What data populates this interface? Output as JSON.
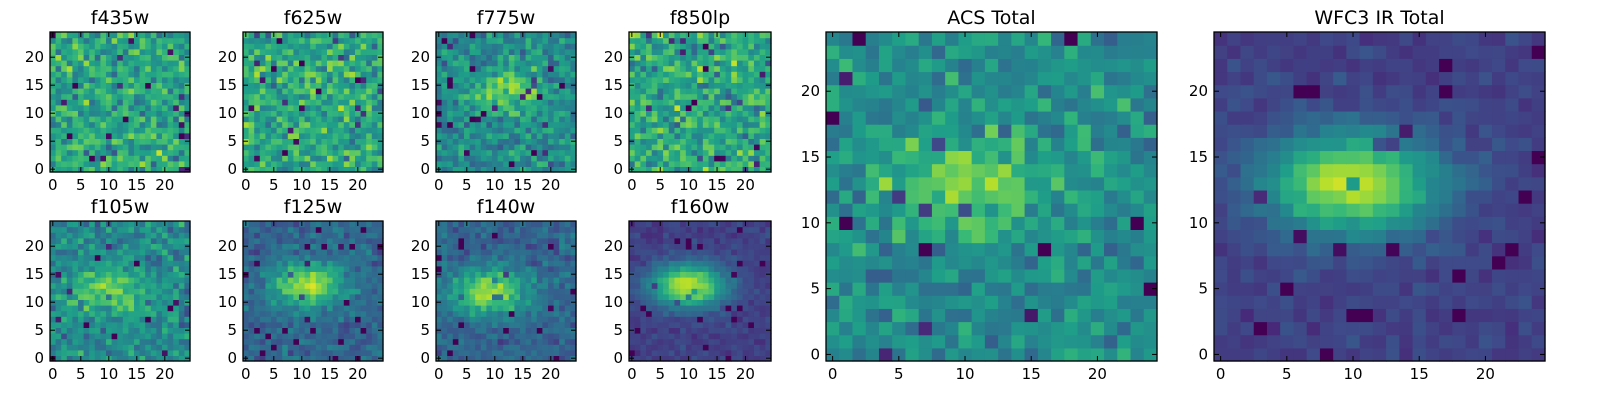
{
  "chart_data": [
    {
      "type": "heatmap",
      "title": "f435w",
      "grid_size": 25,
      "xlim": [
        -0.5,
        24.5
      ],
      "ylim": [
        -0.5,
        24.5
      ],
      "xticks": [
        0,
        5,
        10,
        15,
        20
      ],
      "yticks": [
        0,
        5,
        10,
        15,
        20
      ],
      "colormap": "viridis",
      "pattern": "noise",
      "peak": [
        12,
        12
      ]
    },
    {
      "type": "heatmap",
      "title": "f625w",
      "grid_size": 25,
      "xlim": [
        -0.5,
        24.5
      ],
      "ylim": [
        -0.5,
        24.5
      ],
      "xticks": [
        0,
        5,
        10,
        15,
        20
      ],
      "yticks": [
        0,
        5,
        10,
        15,
        20
      ],
      "colormap": "viridis",
      "pattern": "noise",
      "peak": [
        12,
        12
      ]
    },
    {
      "type": "heatmap",
      "title": "f775w",
      "grid_size": 25,
      "xlim": [
        -0.5,
        24.5
      ],
      "ylim": [
        -0.5,
        24.5
      ],
      "xticks": [
        0,
        5,
        10,
        15,
        20
      ],
      "yticks": [
        0,
        5,
        10,
        15,
        20
      ],
      "colormap": "viridis",
      "pattern": "noise-faint-source",
      "peak": [
        13,
        14
      ]
    },
    {
      "type": "heatmap",
      "title": "f850lp",
      "grid_size": 25,
      "xlim": [
        -0.5,
        24.5
      ],
      "ylim": [
        -0.5,
        24.5
      ],
      "xticks": [
        0,
        5,
        10,
        15,
        20
      ],
      "yticks": [
        0,
        5,
        10,
        15,
        20
      ],
      "colormap": "viridis",
      "pattern": "noise",
      "peak": [
        12,
        12
      ]
    },
    {
      "type": "heatmap",
      "title": "f105w",
      "grid_size": 25,
      "xlim": [
        -0.5,
        24.5
      ],
      "ylim": [
        -0.5,
        24.5
      ],
      "xticks": [
        0,
        5,
        10,
        15,
        20
      ],
      "yticks": [
        0,
        5,
        10,
        15,
        20
      ],
      "colormap": "viridis",
      "pattern": "noise-faint-source",
      "peak": [
        10,
        12
      ]
    },
    {
      "type": "heatmap",
      "title": "f125w",
      "grid_size": 25,
      "xlim": [
        -0.5,
        24.5
      ],
      "ylim": [
        -0.5,
        24.5
      ],
      "xticks": [
        0,
        5,
        10,
        15,
        20
      ],
      "yticks": [
        0,
        5,
        10,
        15,
        20
      ],
      "colormap": "viridis",
      "pattern": "source",
      "peak": [
        11,
        13
      ]
    },
    {
      "type": "heatmap",
      "title": "f140w",
      "grid_size": 25,
      "xlim": [
        -0.5,
        24.5
      ],
      "ylim": [
        -0.5,
        24.5
      ],
      "xticks": [
        0,
        5,
        10,
        15,
        20
      ],
      "yticks": [
        0,
        5,
        10,
        15,
        20
      ],
      "colormap": "viridis",
      "pattern": "source",
      "peak": [
        9,
        12
      ]
    },
    {
      "type": "heatmap",
      "title": "f160w",
      "grid_size": 25,
      "xlim": [
        -0.5,
        24.5
      ],
      "ylim": [
        -0.5,
        24.5
      ],
      "xticks": [
        0,
        5,
        10,
        15,
        20
      ],
      "yticks": [
        0,
        5,
        10,
        15,
        20
      ],
      "colormap": "viridis",
      "pattern": "source-strong",
      "peak": [
        10,
        13
      ]
    },
    {
      "type": "heatmap",
      "title": "ACS Total",
      "grid_size": 25,
      "xlim": [
        -0.5,
        24.5
      ],
      "ylim": [
        -0.5,
        24.5
      ],
      "xticks": [
        0,
        5,
        10,
        15,
        20
      ],
      "yticks": [
        0,
        5,
        10,
        15,
        20
      ],
      "colormap": "viridis",
      "pattern": "noise-faint-source",
      "peak": [
        10,
        13
      ]
    },
    {
      "type": "heatmap",
      "title": "WFC3 IR Total",
      "grid_size": 25,
      "xlim": [
        -0.5,
        24.5
      ],
      "ylim": [
        -0.5,
        24.5
      ],
      "xticks": [
        0,
        5,
        10,
        15,
        20
      ],
      "yticks": [
        0,
        5,
        10,
        15,
        20
      ],
      "colormap": "viridis",
      "pattern": "source-strong",
      "peak": [
        10,
        13
      ]
    }
  ]
}
